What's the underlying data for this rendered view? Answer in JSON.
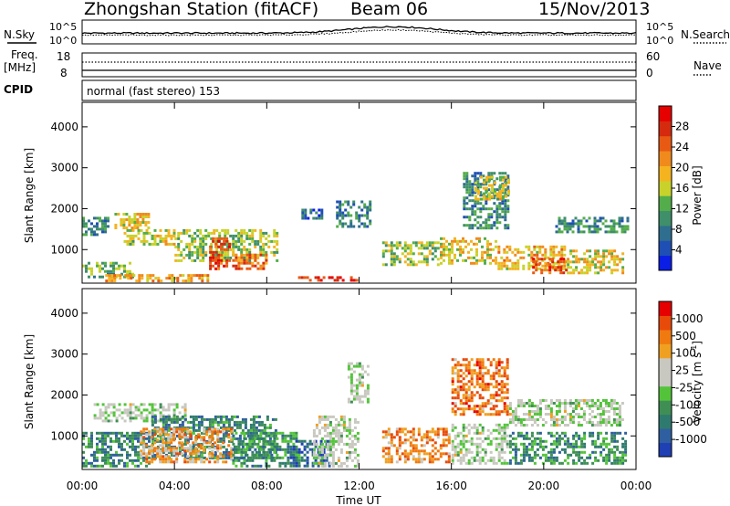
{
  "header": {
    "title": "Zhongshan Station (fitACF)",
    "beam": "Beam 06",
    "date": "15/Nov/2013"
  },
  "params_panel": {
    "nsky_label": "N.Sky",
    "nsearch_label": "N.Search",
    "nsky_top": "10^5",
    "nsky_bottom": "10^0",
    "nsearch_top": "10^5",
    "nsearch_bottom": "10^0",
    "freq_label_1": "Freq.",
    "freq_label_2": "[MHz]",
    "freq_top": "18",
    "freq_bottom": "8",
    "nave_label": "Nave",
    "nave_top": "60",
    "nave_bottom": "0",
    "cpid_label": "CPID",
    "cpid_value": "normal (fast stereo) 153"
  },
  "chart_data": [
    {
      "type": "heatmap",
      "name": "power",
      "ylabel": "Slant Range [km]",
      "ylim": [
        180,
        4600
      ],
      "yticks": [
        "1000",
        "2000",
        "3000",
        "4000"
      ],
      "colorbar_label": "Power [dB]",
      "colorbar_ticks": [
        "4",
        "8",
        "12",
        "16",
        "20",
        "24",
        "28"
      ],
      "colorscale": [
        "#0a1ee6",
        "#1f4fb4",
        "#2f6e8e",
        "#3f8f6a",
        "#53ad4a",
        "#c8d22a",
        "#f5b320",
        "#f08a1c",
        "#e85a14",
        "#d52a0e",
        "#e60000"
      ],
      "blobs": [
        {
          "t0": 0.0,
          "t1": 1.2,
          "r0": 1300,
          "r1": 1800,
          "level": 0.3
        },
        {
          "t0": 0.0,
          "t1": 2.3,
          "r0": 300,
          "r1": 700,
          "level": 0.4
        },
        {
          "t0": 1.4,
          "t1": 3.0,
          "r0": 1500,
          "r1": 1900,
          "level": 0.55
        },
        {
          "t0": 1.8,
          "t1": 4.0,
          "r0": 1100,
          "r1": 1500,
          "level": 0.5
        },
        {
          "t0": 4.0,
          "t1": 8.5,
          "r0": 700,
          "r1": 1500,
          "level": 0.45
        },
        {
          "t0": 5.5,
          "t1": 6.5,
          "r0": 500,
          "r1": 1300,
          "level": 0.85
        },
        {
          "t0": 6.5,
          "t1": 8.0,
          "r0": 500,
          "r1": 900,
          "level": 0.75
        },
        {
          "t0": 1.0,
          "t1": 5.5,
          "r0": 200,
          "r1": 400,
          "level": 0.65
        },
        {
          "t0": 9.0,
          "t1": 12.0,
          "r0": 200,
          "r1": 350,
          "level": 0.9
        },
        {
          "t0": 11.0,
          "t1": 12.5,
          "r0": 1500,
          "r1": 2200,
          "level": 0.25
        },
        {
          "t0": 9.5,
          "t1": 10.5,
          "r0": 1700,
          "r1": 2000,
          "level": 0.2
        },
        {
          "t0": 13.0,
          "t1": 15.5,
          "r0": 600,
          "r1": 1200,
          "level": 0.45
        },
        {
          "t0": 15.5,
          "t1": 18.0,
          "r0": 600,
          "r1": 1300,
          "level": 0.55
        },
        {
          "t0": 16.5,
          "t1": 18.5,
          "r0": 1500,
          "r1": 2900,
          "level": 0.3
        },
        {
          "t0": 17.0,
          "t1": 18.5,
          "r0": 2200,
          "r1": 2800,
          "level": 0.5
        },
        {
          "t0": 18.0,
          "t1": 21.0,
          "r0": 500,
          "r1": 1100,
          "level": 0.6
        },
        {
          "t0": 19.5,
          "t1": 21.0,
          "r0": 400,
          "r1": 800,
          "level": 0.8
        },
        {
          "t0": 20.5,
          "t1": 23.7,
          "r0": 1400,
          "r1": 1800,
          "level": 0.3
        },
        {
          "t0": 21.0,
          "t1": 23.5,
          "r0": 400,
          "r1": 1000,
          "level": 0.55
        }
      ]
    },
    {
      "type": "heatmap",
      "name": "velocity",
      "ylabel": "Slant Range [km]",
      "ylim": [
        180,
        4600
      ],
      "yticks": [
        "1000",
        "2000",
        "3000",
        "4000"
      ],
      "colorbar_label": "Velocity [m s^-1]",
      "colorbar_ticks": [
        "1000",
        "500",
        "100",
        "25",
        "-25",
        "-100",
        "-500",
        "-1000"
      ],
      "colorscale": [
        "#1f3fb4",
        "#2f5fa0",
        "#2f7a6e",
        "#3f8f55",
        "#53c43a",
        "#c8c8c0",
        "#c8c8c0",
        "#f0a020",
        "#f07a10",
        "#e84a0a",
        "#e60000"
      ],
      "blobs": [
        {
          "t0": 0.5,
          "t1": 4.5,
          "r0": 1300,
          "r1": 1800,
          "level": 0.5
        },
        {
          "t0": 0.0,
          "t1": 3.0,
          "r0": 200,
          "r1": 1100,
          "level": 0.25
        },
        {
          "t0": 3.0,
          "t1": 8.5,
          "r0": 400,
          "r1": 1500,
          "level": 0.25
        },
        {
          "t0": 2.5,
          "t1": 6.5,
          "r0": 300,
          "r1": 1200,
          "level": 0.7
        },
        {
          "t0": 6.5,
          "t1": 9.5,
          "r0": 200,
          "r1": 1100,
          "level": 0.3
        },
        {
          "t0": 9.0,
          "t1": 10.8,
          "r0": 200,
          "r1": 900,
          "level": 0.12
        },
        {
          "t0": 10.0,
          "t1": 12.0,
          "r0": 200,
          "r1": 1500,
          "level": 0.5
        },
        {
          "t0": 11.5,
          "t1": 12.5,
          "r0": 1800,
          "r1": 2800,
          "level": 0.5
        },
        {
          "t0": 13.0,
          "t1": 16.0,
          "r0": 300,
          "r1": 1200,
          "level": 0.75
        },
        {
          "t0": 16.0,
          "t1": 18.5,
          "r0": 1500,
          "r1": 2900,
          "level": 0.78
        },
        {
          "t0": 16.0,
          "t1": 18.5,
          "r0": 300,
          "r1": 1300,
          "level": 0.5
        },
        {
          "t0": 18.5,
          "t1": 21.0,
          "r0": 300,
          "r1": 1100,
          "level": 0.28
        },
        {
          "t0": 18.5,
          "t1": 23.5,
          "r0": 1200,
          "r1": 1900,
          "level": 0.5
        },
        {
          "t0": 21.0,
          "t1": 23.6,
          "r0": 300,
          "r1": 1100,
          "level": 0.3
        }
      ]
    }
  ],
  "time_axis": {
    "label": "Time UT",
    "range_hours": [
      0,
      24
    ],
    "ticks": [
      "00:00",
      "04:00",
      "08:00",
      "12:00",
      "16:00",
      "20:00",
      "00:00"
    ]
  }
}
